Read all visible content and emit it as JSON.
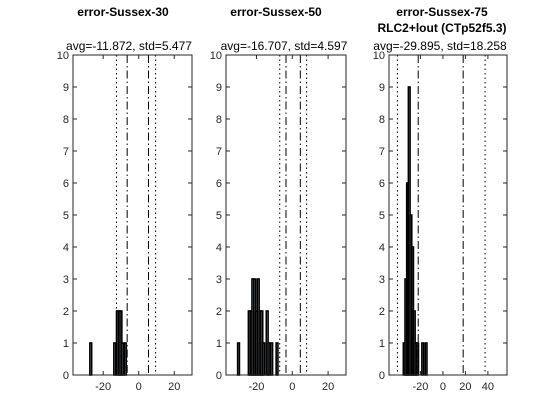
{
  "chart_data": [
    {
      "type": "histogram",
      "title": "error-Sussex-30",
      "title_line2": "",
      "subtitle": "avg=-11.872, std=5.477",
      "xlim": [
        -37,
        30
      ],
      "ylim": [
        0,
        10
      ],
      "xticks": [
        -20,
        0,
        20
      ],
      "yticks": [
        0,
        1,
        2,
        3,
        4,
        5,
        6,
        7,
        8,
        9,
        10
      ],
      "bar_width": 1,
      "bars": [
        {
          "x": -27,
          "count": 1
        },
        {
          "x": -13.5,
          "count": 1
        },
        {
          "x": -12,
          "count": 2
        },
        {
          "x": -11,
          "count": 2
        },
        {
          "x": -10,
          "count": 2
        },
        {
          "x": -9,
          "count": 1
        },
        {
          "x": -7.5,
          "count": 1
        }
      ],
      "vlines": [
        {
          "x": -12.5,
          "style": "dotted"
        },
        {
          "x": -6.5,
          "style": "dashdot"
        },
        {
          "x": 5.5,
          "style": "dashdot"
        },
        {
          "x": 9.5,
          "style": "dotted"
        }
      ]
    },
    {
      "type": "histogram",
      "title": "error-Sussex-50",
      "title_line2": "",
      "subtitle": "avg=-16.707, std=4.597",
      "xlim": [
        -37,
        30
      ],
      "ylim": [
        0,
        10
      ],
      "xticks": [
        -20,
        0,
        20
      ],
      "yticks": [
        0,
        1,
        2,
        3,
        4,
        5,
        6,
        7,
        8,
        9,
        10
      ],
      "bar_width": 1,
      "bars": [
        {
          "x": -30,
          "count": 1
        },
        {
          "x": -24,
          "count": 2
        },
        {
          "x": -23,
          "count": 2
        },
        {
          "x": -22,
          "count": 3
        },
        {
          "x": -21,
          "count": 3
        },
        {
          "x": -20,
          "count": 2
        },
        {
          "x": -19,
          "count": 3
        },
        {
          "x": -18,
          "count": 2
        },
        {
          "x": -17,
          "count": 2
        },
        {
          "x": -16,
          "count": 1
        },
        {
          "x": -14,
          "count": 2
        },
        {
          "x": -13,
          "count": 1
        },
        {
          "x": -11.5,
          "count": 1
        },
        {
          "x": -8.5,
          "count": 1
        }
      ],
      "vlines": [
        {
          "x": -7,
          "style": "dotted"
        },
        {
          "x": -3.5,
          "style": "dashdot"
        },
        {
          "x": 4.5,
          "style": "dashdot"
        },
        {
          "x": 8,
          "style": "dotted"
        }
      ]
    },
    {
      "type": "histogram",
      "title": "error-Sussex-75",
      "title_line2": "RLC2+lout (CTp52f5.3)",
      "subtitle": "avg=-29.895, std=18.258",
      "xlim": [
        -48,
        57
      ],
      "ylim": [
        0,
        10
      ],
      "xticks": [
        -20,
        0,
        20,
        40
      ],
      "yticks": [
        0,
        1,
        2,
        3,
        4,
        5,
        6,
        7,
        8,
        9,
        10
      ],
      "bar_width": 1.5,
      "bars": [
        {
          "x": -34.5,
          "count": 1
        },
        {
          "x": -33,
          "count": 3
        },
        {
          "x": -31.5,
          "count": 6
        },
        {
          "x": -30,
          "count": 9
        },
        {
          "x": -28.5,
          "count": 5
        },
        {
          "x": -27,
          "count": 4
        },
        {
          "x": -25.5,
          "count": 2
        },
        {
          "x": -24,
          "count": 1
        },
        {
          "x": -22.5,
          "count": 1
        },
        {
          "x": -18,
          "count": 1
        },
        {
          "x": -15,
          "count": 1
        }
      ],
      "vlines": [
        {
          "x": -40.5,
          "style": "dotted"
        },
        {
          "x": -22,
          "style": "dashdot"
        },
        {
          "x": 18,
          "style": "dashdot"
        },
        {
          "x": 37.5,
          "style": "dotted"
        }
      ]
    }
  ]
}
